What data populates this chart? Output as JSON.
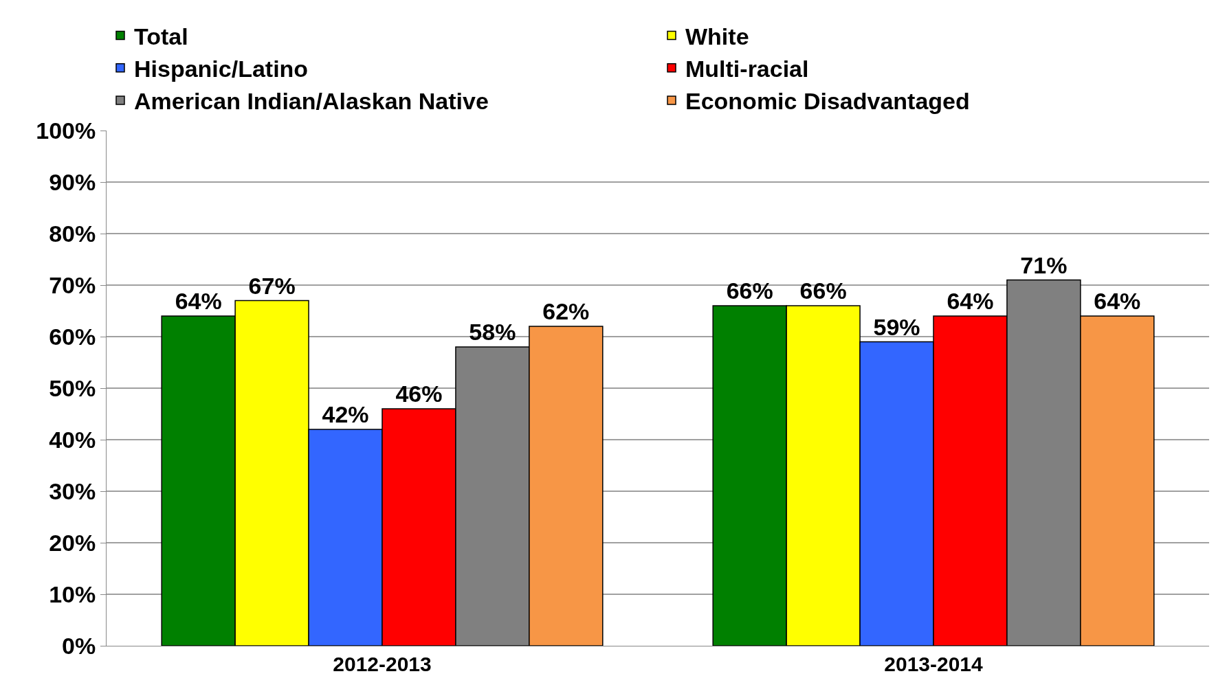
{
  "chart_data": {
    "type": "bar",
    "categories": [
      "2012-2013",
      "2013-2014"
    ],
    "series": [
      {
        "name": "Total",
        "color": "#008000",
        "values": [
          64,
          66
        ],
        "value_labels": [
          "64%",
          "66%"
        ]
      },
      {
        "name": "White",
        "color": "#ffff00",
        "values": [
          67,
          66
        ],
        "value_labels": [
          "67%",
          "66%"
        ]
      },
      {
        "name": "Hispanic/Latino",
        "color": "#3366ff",
        "values": [
          42,
          59
        ],
        "value_labels": [
          "42%",
          "59%"
        ]
      },
      {
        "name": "Multi-racial",
        "color": "#ff0000",
        "values": [
          46,
          64
        ],
        "value_labels": [
          "46%",
          "64%"
        ]
      },
      {
        "name": "American Indian/Alaskan Native",
        "color": "#808080",
        "values": [
          58,
          71
        ],
        "value_labels": [
          "58%",
          "71%"
        ]
      },
      {
        "name": "Economic Disadvantaged",
        "color": "#f79646",
        "values": [
          62,
          64
        ],
        "value_labels": [
          "62%",
          "64%"
        ]
      }
    ],
    "ylim": [
      0,
      100
    ],
    "yticks": [
      {
        "value": 0,
        "label": "0%"
      },
      {
        "value": 10,
        "label": "10%"
      },
      {
        "value": 20,
        "label": "20%"
      },
      {
        "value": 30,
        "label": "30%"
      },
      {
        "value": 40,
        "label": "40%"
      },
      {
        "value": 50,
        "label": "50%"
      },
      {
        "value": 60,
        "label": "60%"
      },
      {
        "value": 70,
        "label": "70%"
      },
      {
        "value": 80,
        "label": "80%"
      },
      {
        "value": 90,
        "label": "90%"
      },
      {
        "value": 100,
        "label": "100%"
      }
    ],
    "grid": "y",
    "legend": "top"
  }
}
